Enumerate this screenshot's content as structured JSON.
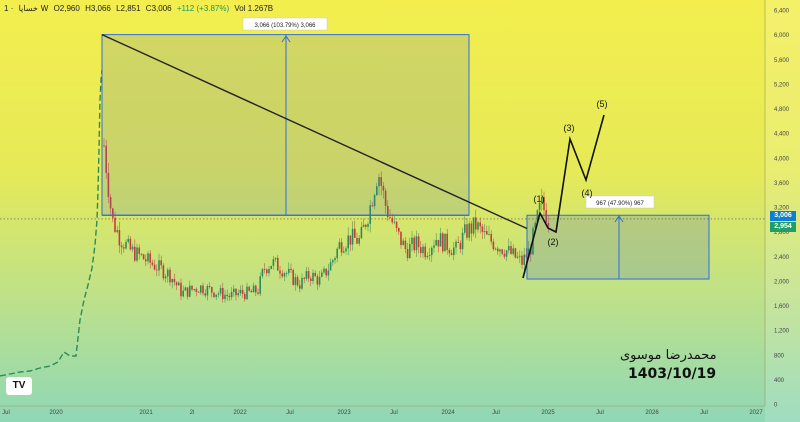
{
  "header": {
    "symbol": "خساپا",
    "interval": "1W",
    "open": "O2,960",
    "high": "H3,066",
    "low": "L2,851",
    "close": "C3,006",
    "change": "+112 (+3.87%)",
    "volume": "Vol 1.267B"
  },
  "logo_text": "TV",
  "signature": {
    "name": "محمدرضا موسوی",
    "date": "1403/10/19"
  },
  "price_badges": {
    "last": "3,006",
    "prev": "2,954"
  },
  "colors": {
    "up": "#2e8b57",
    "down": "#c43c3c",
    "badge_last": "#0b7fd3",
    "badge_prev": "#1f9e6a",
    "measure": "#2f6fd8"
  },
  "chart_data": {
    "type": "candlestick",
    "y_ticks": [
      "6,400",
      "6,000",
      "5,600",
      "5,200",
      "4,800",
      "4,400",
      "4,000",
      "3,600",
      "3,200",
      "2,800",
      "2,400",
      "2,000",
      "1,600",
      "1,200",
      "800",
      "400",
      "0"
    ],
    "x_ticks": [
      "Jul",
      "2020",
      "2021",
      "2l",
      "2022",
      "Jul",
      "2023",
      "Jul",
      "2024",
      "Jul",
      "2025",
      "Jul",
      "2026",
      "Jul",
      "2027"
    ],
    "ylim": [
      0,
      6400
    ],
    "annotations": {
      "measure_top": "3,066 (103.79%) 3,066",
      "measure_right": "967 (47.90%) 967",
      "waves": [
        "(1)",
        "(2)",
        "(3)",
        "(4)",
        "(5)"
      ]
    }
  }
}
